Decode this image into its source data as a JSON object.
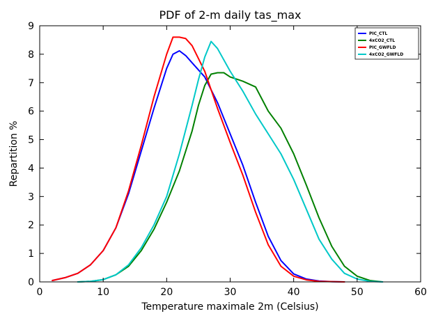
{
  "chart_data": {
    "type": "line",
    "title": "PDF of 2-m daily tas_max",
    "xlabel": "Temperature maximale 2m (Celsius)",
    "ylabel": "Repartition %",
    "xlim": [
      0,
      60
    ],
    "ylim": [
      0,
      9
    ],
    "xticks": [
      "0",
      "10",
      "20",
      "30",
      "40",
      "50",
      "60"
    ],
    "yticks": [
      "0",
      "1",
      "2",
      "3",
      "4",
      "5",
      "6",
      "7",
      "8",
      "9"
    ],
    "grid": false,
    "legend_position": "top-right",
    "series": [
      {
        "name": "PIC_CTL",
        "color": "#0000ff",
        "x": [
          2,
          4,
          6,
          8,
          10,
          12,
          14,
          16,
          18,
          20,
          21,
          22,
          23,
          24,
          26,
          28,
          30,
          32,
          34,
          36,
          38,
          40,
          42,
          44,
          46,
          48
        ],
        "y": [
          0.05,
          0.15,
          0.3,
          0.6,
          1.1,
          1.9,
          3.1,
          4.6,
          6.1,
          7.5,
          8.0,
          8.12,
          7.95,
          7.7,
          7.2,
          6.3,
          5.2,
          4.1,
          2.8,
          1.6,
          0.75,
          0.28,
          0.1,
          0.03,
          0.01,
          0.0
        ]
      },
      {
        "name": "4xCO2_CTL",
        "color": "#008000",
        "x": [
          6,
          8,
          10,
          12,
          14,
          16,
          18,
          20,
          22,
          24,
          25,
          26,
          27,
          28,
          29,
          30,
          32,
          34,
          36,
          38,
          40,
          42,
          44,
          46,
          48,
          50,
          52,
          54
        ],
        "y": [
          0.0,
          0.02,
          0.08,
          0.25,
          0.55,
          1.1,
          1.85,
          2.8,
          3.9,
          5.3,
          6.2,
          6.9,
          7.3,
          7.35,
          7.35,
          7.2,
          7.05,
          6.85,
          6.0,
          5.4,
          4.5,
          3.4,
          2.25,
          1.25,
          0.55,
          0.2,
          0.05,
          0.0
        ]
      },
      {
        "name": "PIC_GWFLD",
        "color": "#ff0000",
        "x": [
          2,
          4,
          6,
          8,
          10,
          12,
          14,
          16,
          18,
          20,
          21,
          22,
          23,
          24,
          26,
          28,
          30,
          32,
          34,
          36,
          38,
          40,
          42,
          44,
          46,
          48
        ],
        "y": [
          0.05,
          0.15,
          0.3,
          0.6,
          1.1,
          1.9,
          3.2,
          4.8,
          6.5,
          8.0,
          8.6,
          8.6,
          8.55,
          8.3,
          7.4,
          6.1,
          4.9,
          3.75,
          2.45,
          1.3,
          0.55,
          0.2,
          0.07,
          0.02,
          0.01,
          0.0
        ]
      },
      {
        "name": "4xCO2_GWFLD",
        "color": "#00c8c8",
        "x": [
          6,
          8,
          10,
          12,
          14,
          16,
          18,
          20,
          22,
          24,
          25,
          26,
          27,
          28,
          30,
          32,
          34,
          36,
          38,
          40,
          42,
          44,
          46,
          48,
          50,
          52,
          54
        ],
        "y": [
          0.0,
          0.02,
          0.08,
          0.25,
          0.6,
          1.2,
          2.0,
          3.0,
          4.5,
          6.2,
          7.1,
          7.9,
          8.45,
          8.2,
          7.4,
          6.7,
          5.9,
          5.2,
          4.5,
          3.6,
          2.55,
          1.5,
          0.8,
          0.3,
          0.1,
          0.02,
          0.0
        ]
      }
    ]
  }
}
